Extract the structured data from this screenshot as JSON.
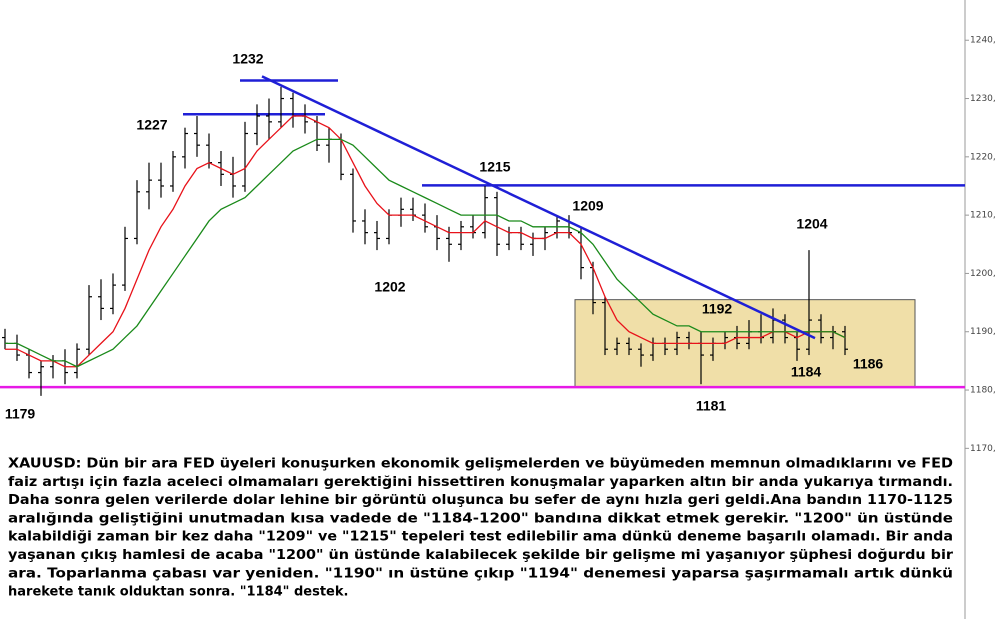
{
  "chart_data": {
    "type": "candlestick",
    "ylim": [
      1168,
      1246.9
    ],
    "yticks": [
      {
        "value": 1170,
        "label": "1170,"
      },
      {
        "value": 1180,
        "label": "1180,"
      },
      {
        "value": 1190,
        "label": "1190,"
      },
      {
        "value": 1200,
        "label": "1200,"
      },
      {
        "value": 1210,
        "label": "1210,"
      },
      {
        "value": 1220,
        "label": "1220,"
      },
      {
        "value": 1230,
        "label": "1230,"
      },
      {
        "value": 1240,
        "label": "1240,"
      }
    ],
    "open": [
      1189,
      1188,
      1186,
      1183,
      1184,
      1185,
      1183,
      1187,
      1196,
      1194,
      1198,
      1206,
      1214,
      1216,
      1215,
      1220,
      1224,
      1222,
      1219,
      1217,
      1215,
      1224,
      1227,
      1226,
      1230,
      1227,
      1226,
      1222,
      1223,
      1217,
      1209,
      1207,
      1206,
      1210,
      1211,
      1210,
      1208,
      1206,
      1205,
      1208,
      1207,
      1213,
      1205,
      1207,
      1205,
      1206,
      1207,
      1209,
      1207,
      1201,
      1195,
      1187,
      1188,
      1187,
      1186,
      1188,
      1187,
      1189,
      1188,
      1186,
      1188,
      1189,
      1188,
      1190,
      1189,
      1192,
      1189,
      1187,
      1192,
      1189,
      1190
    ],
    "high": [
      1190.5,
      1189.5,
      1187,
      1185,
      1186,
      1187,
      1188,
      1198,
      1199,
      1200,
      1208,
      1216,
      1219,
      1219,
      1221,
      1225,
      1227,
      1224,
      1221,
      1220,
      1226,
      1229,
      1230,
      1232,
      1231,
      1229,
      1227,
      1225,
      1224,
      1218,
      1211,
      1209,
      1211,
      1213,
      1213,
      1212,
      1210,
      1208,
      1209,
      1210,
      1215,
      1214,
      1208,
      1208,
      1207,
      1208,
      1210,
      1210,
      1208,
      1202,
      1196,
      1189,
      1189,
      1188,
      1189,
      1189,
      1190,
      1190,
      1190,
      1189,
      1190,
      1191,
      1192,
      1193,
      1194,
      1193,
      1190,
      1204,
      1193,
      1191,
      1191
    ],
    "low": [
      1187,
      1185,
      1182,
      1179,
      1182,
      1181,
      1182,
      1186,
      1192,
      1193,
      1197,
      1205,
      1211,
      1213,
      1214,
      1218,
      1220,
      1218,
      1215,
      1213,
      1214,
      1222,
      1223,
      1225,
      1225,
      1224,
      1221,
      1219,
      1216,
      1207,
      1205,
      1204,
      1205,
      1208,
      1209,
      1207,
      1204,
      1202,
      1204,
      1206,
      1206,
      1203,
      1204,
      1204,
      1203,
      1204,
      1206,
      1206,
      1199,
      1193,
      1186,
      1186,
      1186,
      1184,
      1185,
      1186,
      1186,
      1187,
      1181,
      1185,
      1187,
      1187,
      1187,
      1188,
      1188,
      1188,
      1185,
      1186,
      1188,
      1187,
      1186
    ],
    "close": [
      1188,
      1186,
      1183,
      1184,
      1185,
      1183,
      1187,
      1196,
      1194,
      1198,
      1206,
      1214,
      1216,
      1215,
      1220,
      1224,
      1222,
      1219,
      1217,
      1215,
      1224,
      1227,
      1226,
      1230,
      1227,
      1226,
      1222,
      1223,
      1217,
      1209,
      1207,
      1206,
      1210,
      1211,
      1210,
      1208,
      1206,
      1205,
      1208,
      1207,
      1213,
      1205,
      1207,
      1205,
      1206,
      1207,
      1209,
      1207,
      1201,
      1195,
      1187,
      1188,
      1187,
      1186,
      1188,
      1187,
      1189,
      1188,
      1186,
      1188,
      1189,
      1188,
      1190,
      1189,
      1192,
      1189,
      1187,
      1192,
      1189,
      1190,
      1187
    ],
    "overlays": [
      {
        "color": "#e8121a",
        "values": [
          1187,
          1187,
          1186,
          1185,
          1185,
          1184,
          1184,
          1186,
          1188,
          1190,
          1194,
          1199,
          1204,
          1208,
          1211,
          1215,
          1218,
          1219,
          1218,
          1217,
          1218,
          1221,
          1223,
          1225,
          1227,
          1227,
          1226,
          1225,
          1223,
          1219,
          1215,
          1212,
          1210,
          1210,
          1210,
          1209,
          1208,
          1207,
          1207,
          1207,
          1209,
          1208,
          1207,
          1207,
          1206,
          1206,
          1207,
          1207,
          1205,
          1201,
          1196,
          1192,
          1190,
          1189,
          1188,
          1188,
          1188,
          1188,
          1188,
          1188,
          1188,
          1189,
          1189,
          1189,
          1190,
          1190,
          1189,
          1190,
          1190,
          1190,
          1189
        ]
      },
      {
        "color": "#1a8a1a",
        "values": [
          1188,
          1188,
          1187,
          1186,
          1185,
          1185,
          1184,
          1185,
          1186,
          1187,
          1189,
          1191,
          1194,
          1197,
          1200,
          1203,
          1206,
          1209,
          1211,
          1212,
          1213,
          1215,
          1217,
          1219,
          1221,
          1222,
          1223,
          1223,
          1223,
          1222,
          1220,
          1218,
          1216,
          1215,
          1214,
          1213,
          1212,
          1211,
          1210,
          1210,
          1210,
          1210,
          1209,
          1209,
          1208,
          1208,
          1208,
          1208,
          1207,
          1205,
          1202,
          1199,
          1197,
          1195,
          1193,
          1192,
          1191,
          1191,
          1190,
          1190,
          1190,
          1190,
          1190,
          1190,
          1190,
          1190,
          1190,
          1190,
          1190,
          1190,
          1189
        ]
      }
    ],
    "box": {
      "ylim": [
        1180.6,
        1195.5
      ],
      "color": "#f0dfa8"
    },
    "hlines": [
      {
        "value": 1233.1,
        "color": "#1f1fd6"
      },
      {
        "value": 1227.3,
        "color": "#1f1fd6"
      },
      {
        "value": 1215.1,
        "color": "#1f1fd6"
      },
      {
        "value": 1180.5,
        "color": "#e619e6"
      }
    ],
    "trendline": {
      "values": [
        1233.8,
        1188.9
      ],
      "color": "#1f1fd6"
    },
    "annotations": [
      "1232",
      "1227",
      "1215",
      "1209",
      "1202",
      "1192",
      "1204",
      "1184",
      "1186",
      "1181",
      "1179"
    ],
    "caption": [
      "XAUUSD: Dün bir ara FED üyeleri konuşurken ekonomik gelişmelerden ve büyümeden memnun olmadıklarını ve FED",
      "faiz artışı için fazla aceleci olmamaları gerektiğini hissettiren konuşmalar yaparken altın bir anda yukarıya tırmandı.",
      "Daha sonra gelen verilerde dolar lehine bir görüntü oluşunca bu sefer de aynı hızla geri geldi.Ana bandın 1170-1125",
      "aralığında geliştiğini unutmadan kısa vadede de \"1184-1200\" bandına dikkat etmek gerekir. \"1200\" ün üstünde",
      "kalabildiği zaman bir kez daha \"1209\" ve \"1215\" tepeleri test edilebilir ama dünkü deneme başarılı olamadı. Bir anda",
      "yaşanan çıkış hamlesi de acaba \"1200\" ün üstünde kalabilecek şekilde bir gelişme mi yaşanıyor şüphesi doğurdu bir",
      "ara. Toparlanma çabası var yeniden. \"1190\" ın üstüne çıkıp \"1194\" denemesi yaparsa şaşırmamalı artık dünkü",
      "harekete tanık olduktan sonra. \"1184\" destek."
    ]
  }
}
